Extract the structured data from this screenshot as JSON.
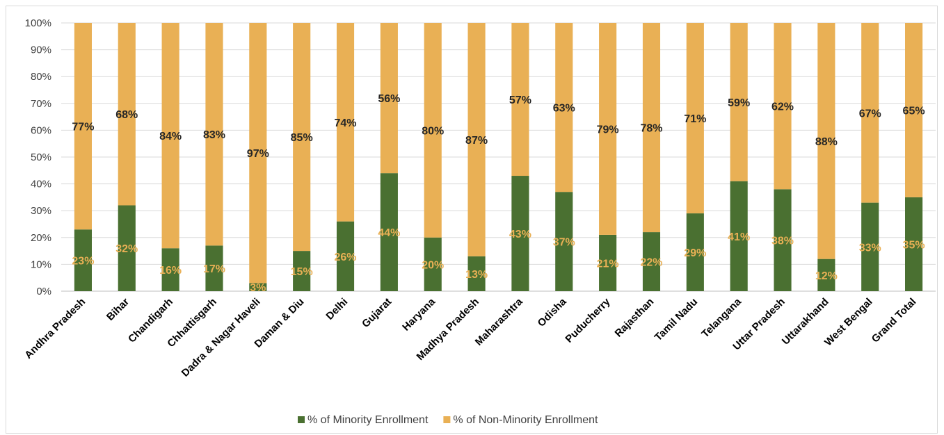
{
  "chart_data": {
    "type": "bar",
    "stacked": true,
    "title": "",
    "xlabel": "",
    "ylabel": "",
    "ylim": [
      0,
      100
    ],
    "y_ticks": [
      "0%",
      "10%",
      "20%",
      "30%",
      "40%",
      "50%",
      "60%",
      "70%",
      "80%",
      "90%",
      "100%"
    ],
    "grid": true,
    "legend_position": "bottom",
    "categories": [
      "Andhra Pradesh",
      "Bihar",
      "Chandigarh",
      "Chhattisgarh",
      "Dadra & Nagar Haveli",
      "Daman & Diu",
      "Delhi",
      "Gujarat",
      "Haryana",
      "Madhya Pradesh",
      "Maharashtra",
      "Odisha",
      "Puducherry",
      "Rajasthan",
      "Tamil Nadu",
      "Telangana",
      "Uttar Pradesh",
      "Uttarakhand",
      "West Bengal",
      "Grand Total"
    ],
    "series": [
      {
        "name": "% of Minority Enrollment",
        "color": "#4a7031",
        "label_color": "#e9b055",
        "values": [
          23,
          32,
          16,
          17,
          3,
          15,
          26,
          44,
          20,
          13,
          43,
          37,
          21,
          22,
          29,
          41,
          38,
          12,
          33,
          35
        ],
        "labels": [
          "23%",
          "32%",
          "16%",
          "17%",
          "3%",
          "15%",
          "26%",
          "44%",
          "20%",
          "13%",
          "43%",
          "37%",
          "21%",
          "22%",
          "29%",
          "41%",
          "38%",
          "12%",
          "33%",
          "35%"
        ]
      },
      {
        "name": "% of Non-Minority Enrollment",
        "color": "#e9b055",
        "label_color": "#262626",
        "values": [
          77,
          68,
          84,
          83,
          97,
          85,
          74,
          56,
          80,
          87,
          57,
          63,
          79,
          78,
          71,
          59,
          62,
          88,
          67,
          65
        ],
        "labels": [
          "77%",
          "68%",
          "84%",
          "83%",
          "97%",
          "85%",
          "74%",
          "56%",
          "80%",
          "87%",
          "57%",
          "63%",
          "79%",
          "78%",
          "71%",
          "59%",
          "62%",
          "88%",
          "67%",
          "65%"
        ]
      }
    ]
  }
}
